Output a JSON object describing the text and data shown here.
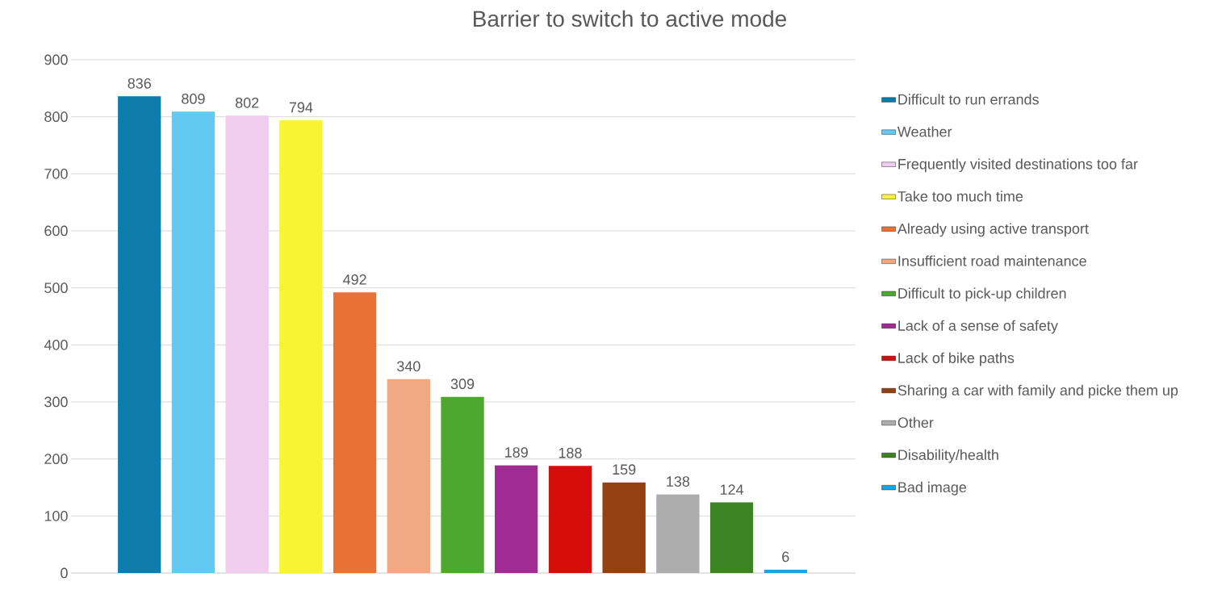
{
  "chart_data": {
    "type": "bar",
    "title": "Barrier to switch to active mode",
    "categories": [
      null
    ],
    "series": [
      {
        "name": "Difficult to run errands",
        "color": "#0e7dab",
        "values": [
          836
        ]
      },
      {
        "name": "Weather",
        "color": "#62caf2",
        "values": [
          809
        ]
      },
      {
        "name": "Frequently visited destinations too far",
        "color": "#f0cdef",
        "values": [
          802
        ]
      },
      {
        "name": "Take too much time",
        "color": "#f9f431",
        "values": [
          794
        ]
      },
      {
        "name": "Already using active transport",
        "color": "#e87133",
        "values": [
          492
        ]
      },
      {
        "name": "Insufficient road maintenance",
        "color": "#f1a983",
        "values": [
          340
        ]
      },
      {
        "name": "Difficult to pick-up children",
        "color": "#4ea72e",
        "values": [
          309
        ]
      },
      {
        "name": "Lack of a sense of safety",
        "color": "#a02b93",
        "values": [
          189
        ]
      },
      {
        "name": "Lack of bike paths",
        "color": "#d50d0b",
        "values": [
          188
        ]
      },
      {
        "name": "Sharing a car with family and picke them up",
        "color": "#954011",
        "values": [
          159
        ]
      },
      {
        "name": "Other",
        "color": "#adadad",
        "values": [
          138
        ]
      },
      {
        "name": "Disability/health",
        "color": "#3c8325",
        "values": [
          124
        ]
      },
      {
        "name": "Bad image",
        "color": "#18a4dc",
        "values": [
          6
        ]
      }
    ],
    "ylim": [
      0,
      900
    ],
    "yticks": [
      0,
      100,
      200,
      300,
      400,
      500,
      600,
      700,
      800,
      900
    ],
    "grid": "y",
    "legend": "right",
    "tick_labels": "y",
    "data_labels": true
  }
}
